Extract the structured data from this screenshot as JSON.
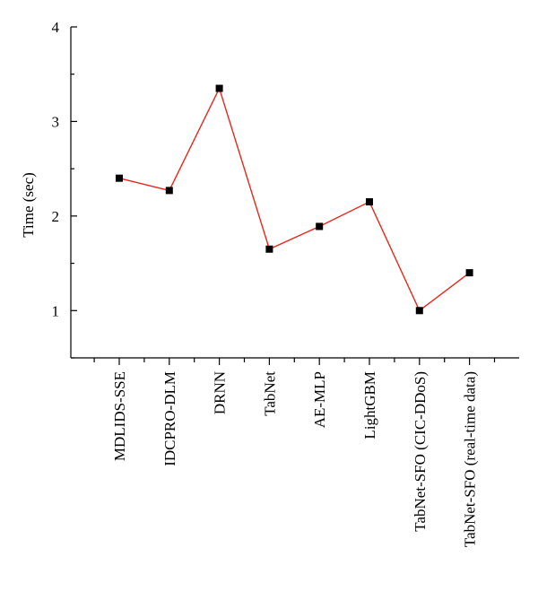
{
  "chart_data": {
    "type": "line",
    "title": "",
    "xlabel": "",
    "ylabel": "Time (sec)",
    "ylim": [
      0.5,
      4
    ],
    "yticks": [
      1,
      2,
      3,
      4
    ],
    "grid": false,
    "legend": "none",
    "categories": [
      "MDLIDS-SSE",
      "IDCPRO-DLM",
      "DRNN",
      "TabNet",
      "AE-MLP",
      "LightGBM",
      "TabNet-SFO (CIC-DDoS)",
      "TabNet-SFO (real-time data)"
    ],
    "series": [
      {
        "values": [
          2.4,
          2.27,
          3.35,
          1.65,
          1.89,
          2.15,
          1.0,
          1.4
        ],
        "color": "#e8271c",
        "marker": "square",
        "marker_color": "#000000"
      }
    ]
  }
}
